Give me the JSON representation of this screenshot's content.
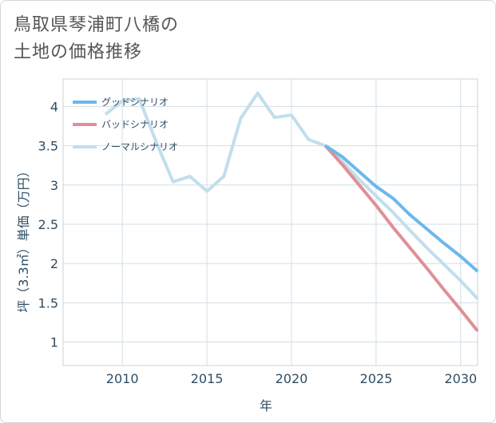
{
  "title": {
    "line1": "鳥取県琴浦町八橋の",
    "line2": "土地の価格推移"
  },
  "chart_data": {
    "type": "line",
    "title": "鳥取県琴浦町八橋の土地の価格推移",
    "xlabel": "年",
    "ylabel": "坪（3.3㎡）単価（万円）",
    "xlim": [
      2006.5,
      2031
    ],
    "ylim": [
      0.7,
      4.35
    ],
    "xticks": [
      2010,
      2015,
      2020,
      2025,
      2030
    ],
    "yticks": [
      1,
      1.5,
      2,
      2.5,
      3,
      3.5,
      4
    ],
    "ytick_labels": [
      "1",
      "1.5",
      "2",
      "2.5",
      "3",
      "3.5",
      "4"
    ],
    "grid": true,
    "legend_position": "top-left",
    "series": [
      {
        "name": "グッドシナリオ",
        "color": "#6cb8ea",
        "x": [
          2022,
          2023,
          2024,
          2025,
          2026,
          2027,
          2028,
          2029,
          2030,
          2031
        ],
        "values": [
          3.5,
          3.36,
          3.17,
          2.98,
          2.83,
          2.62,
          2.44,
          2.26,
          2.09,
          1.9
        ]
      },
      {
        "name": "バッドシナリオ",
        "color": "#e08f97",
        "x": [
          2022,
          2023,
          2024,
          2025,
          2026,
          2027,
          2028,
          2029,
          2030,
          2031
        ],
        "values": [
          3.5,
          3.26,
          3.0,
          2.74,
          2.46,
          2.2,
          1.94,
          1.67,
          1.41,
          1.14
        ]
      },
      {
        "name": "ノーマルシナリオ",
        "color": "#c2deec",
        "x": [
          2009,
          2010,
          2011,
          2012,
          2013,
          2014,
          2015,
          2016,
          2017,
          2018,
          2019,
          2020,
          2021,
          2022,
          2023,
          2024,
          2025,
          2026,
          2027,
          2028,
          2029,
          2030,
          2031
        ],
        "values": [
          3.9,
          4.07,
          4.1,
          3.55,
          3.04,
          3.11,
          2.92,
          3.11,
          3.85,
          4.17,
          3.86,
          3.89,
          3.58,
          3.5,
          3.3,
          3.07,
          2.86,
          2.65,
          2.42,
          2.2,
          1.99,
          1.78,
          1.55
        ]
      }
    ]
  }
}
